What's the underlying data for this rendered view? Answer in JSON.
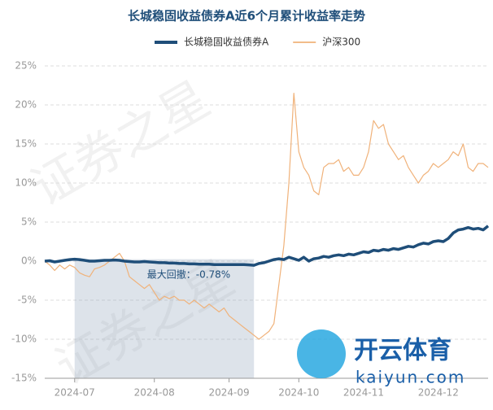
{
  "chart_data": {
    "type": "line",
    "title": "长城稳固收益债券A近6个月累计收益率走势",
    "categories": [
      null,
      null,
      null,
      null,
      null,
      null,
      "2024-07",
      null,
      null,
      null,
      null,
      null,
      null,
      null,
      null,
      null,
      null,
      null,
      null,
      null,
      null,
      null,
      "2024-08",
      null,
      null,
      null,
      null,
      null,
      null,
      null,
      null,
      null,
      null,
      null,
      null,
      null,
      null,
      "2024-09",
      null,
      null,
      null,
      null,
      null,
      null,
      null,
      null,
      null,
      null,
      null,
      null,
      null,
      "2024-10",
      null,
      null,
      null,
      null,
      null,
      null,
      null,
      null,
      null,
      null,
      null,
      null,
      "2024-11",
      null,
      null,
      null,
      null,
      null,
      null,
      null,
      null,
      null,
      null,
      null,
      null,
      null,
      null,
      "2024-12",
      null,
      null,
      null,
      null,
      null,
      null,
      null,
      null,
      null,
      null
    ],
    "series": [
      {
        "name": "长城稳固收益债券A",
        "color": "#1f4e79",
        "width": 3.5,
        "values": [
          0,
          0.05,
          -0.1,
          0,
          0.1,
          0.2,
          0.25,
          0.2,
          0.1,
          0,
          0,
          0.05,
          0.1,
          0.1,
          0.15,
          0.1,
          0,
          -0.05,
          -0.1,
          -0.1,
          -0.05,
          -0.1,
          -0.15,
          -0.2,
          -0.2,
          -0.25,
          -0.25,
          -0.3,
          -0.3,
          -0.35,
          -0.35,
          -0.4,
          -0.4,
          -0.4,
          -0.45,
          -0.45,
          -0.45,
          -0.45,
          -0.45,
          -0.45,
          -0.45,
          -0.48,
          -0.53,
          -0.3,
          -0.2,
          0,
          0.2,
          0.3,
          0.2,
          0.5,
          0.3,
          0.1,
          0.5,
          0,
          0.3,
          0.4,
          0.6,
          0.5,
          0.7,
          0.8,
          0.7,
          0.9,
          0.8,
          1,
          1.2,
          1.1,
          1.4,
          1.3,
          1.5,
          1.4,
          1.6,
          1.5,
          1.7,
          1.9,
          1.8,
          2.1,
          2.3,
          2.2,
          2.5,
          2.6,
          2.5,
          2.9,
          3.6,
          4,
          4.1,
          4.3,
          4.1,
          4.2,
          4,
          4.5
        ]
      },
      {
        "name": "沪深300",
        "color": "#f0b27a",
        "width": 1.2,
        "values": [
          0,
          -0.5,
          -1.2,
          -0.5,
          -1,
          -0.5,
          -0.8,
          -1.5,
          -1.8,
          -2,
          -1,
          -0.8,
          -0.5,
          0,
          0.5,
          1,
          0,
          -2,
          -2.5,
          -3,
          -3.5,
          -3,
          -4,
          -5,
          -4.5,
          -4.8,
          -4.5,
          -5,
          -5,
          -5.5,
          -5,
          -5.5,
          -6,
          -5.5,
          -6,
          -6.5,
          -6,
          -7,
          -7.5,
          -8,
          -8.5,
          -9,
          -9.5,
          -10,
          -9.5,
          -9,
          -8,
          -3,
          2,
          10,
          21.5,
          14,
          12,
          11,
          9,
          8.5,
          12,
          12.5,
          12.5,
          13,
          11.5,
          12,
          11,
          11,
          12,
          14,
          18,
          17,
          17.5,
          15,
          14,
          13,
          13.5,
          12,
          11,
          10,
          11,
          11.5,
          12.5,
          12,
          12.5,
          13,
          14,
          13.5,
          15,
          12,
          11.5,
          12.5,
          12.5,
          12
        ]
      }
    ],
    "annotation": "最大回撤：-0.78%",
    "ylim": [
      -15,
      25
    ],
    "yticks": [
      {
        "value": -15,
        "label": "-15%"
      },
      {
        "value": -10,
        "label": "-10%"
      },
      {
        "value": -5,
        "label": "-5%"
      },
      {
        "value": 0,
        "label": "0%"
      },
      {
        "value": 5,
        "label": "5%"
      },
      {
        "value": 10,
        "label": "10%"
      },
      {
        "value": 15,
        "label": "15%"
      },
      {
        "value": 20,
        "label": "20%"
      },
      {
        "value": 25,
        "label": "25%"
      }
    ],
    "grid": true,
    "legend": "top",
    "watermark": "证券之星",
    "logo_text": "开云体育",
    "logo_url": "kaiyun.com"
  }
}
